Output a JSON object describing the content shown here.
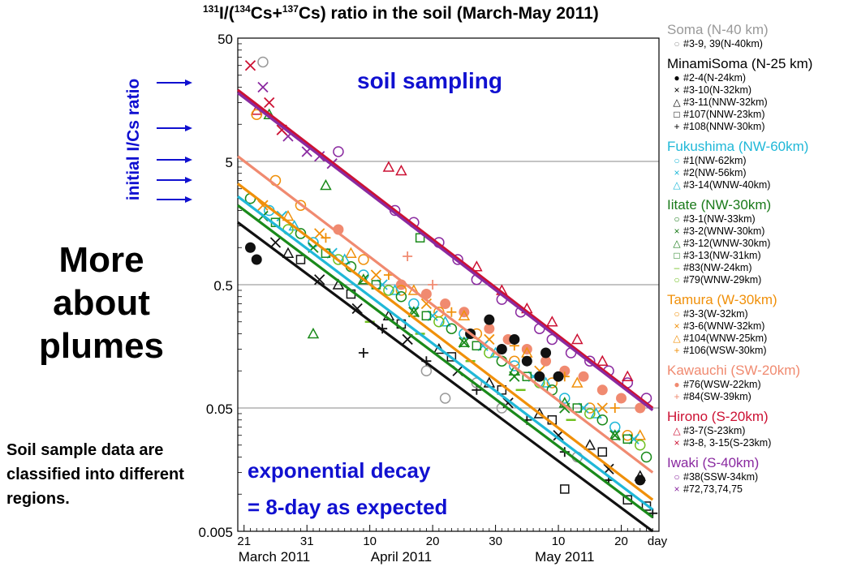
{
  "slide": {
    "title": "More about plumes",
    "note": "Soil sample data are classified into different regions.",
    "annotation_initial": "initial I/Cs ratio",
    "annotation_sampling": "soil sampling",
    "annotation_decay_1": "exponential decay",
    "annotation_decay_2": "= 8-day as expected"
  },
  "chart_data": {
    "type": "scatter",
    "title_parts": [
      "131",
      "I/(",
      "134",
      "Cs+",
      "137",
      "Cs) ratio in the soil (March-May 2011)"
    ],
    "xaxis": {
      "ticks": [
        {
          "day": 21,
          "label": "21"
        },
        {
          "day": 31,
          "label": "31"
        },
        {
          "day": 41,
          "label": "10"
        },
        {
          "day": 51,
          "label": "20"
        },
        {
          "day": 61,
          "label": "30"
        },
        {
          "day": 71,
          "label": "10"
        },
        {
          "day": 81,
          "label": "20"
        }
      ],
      "unit_label": "day",
      "month_labels": [
        "March 2011",
        "April 2011",
        "May 2011"
      ],
      "range": [
        20,
        87
      ]
    },
    "yaxis": {
      "scale": "log",
      "range": [
        0.005,
        50
      ],
      "tick_labels": [
        "50",
        "5",
        "0.5",
        "0.05",
        "0.005"
      ],
      "ticks": [
        50,
        5,
        0.5,
        0.05,
        0.005
      ]
    },
    "grid": true,
    "fit_lines": [
      {
        "region": "Hirono / Iwaki",
        "color": "#cc1133",
        "x": [
          20,
          86
        ],
        "y": [
          19,
          0.05
        ]
      },
      {
        "region": "Iwaki",
        "color": "#8a2aa0",
        "x": [
          20,
          86
        ],
        "y": [
          18,
          0.048
        ]
      },
      {
        "region": "Kawauchi",
        "color": "#f08a70",
        "x": [
          20,
          86
        ],
        "y": [
          5.5,
          0.015
        ]
      },
      {
        "region": "Tamura",
        "color": "#f0900a",
        "x": [
          20,
          86
        ],
        "y": [
          3.3,
          0.009
        ]
      },
      {
        "region": "Fukushima",
        "color": "#20b8d8",
        "x": [
          20,
          86
        ],
        "y": [
          2.6,
          0.0075
        ]
      },
      {
        "region": "Iitate",
        "color": "#1a8a1a",
        "x": [
          20,
          86
        ],
        "y": [
          2.2,
          0.0065
        ]
      },
      {
        "region": "MinamiSoma",
        "color": "#111111",
        "x": [
          20,
          86
        ],
        "y": [
          1.6,
          0.005
        ]
      }
    ],
    "series": [
      {
        "region": "Iwaki",
        "color": "#8a2aa0",
        "marker": "circle",
        "x": [
          36,
          45,
          48,
          52,
          55,
          58,
          62,
          65,
          68,
          70,
          73,
          76,
          79,
          82,
          85
        ],
        "y": [
          6,
          2,
          1.6,
          1.1,
          0.8,
          0.55,
          0.38,
          0.3,
          0.22,
          0.18,
          0.14,
          0.12,
          0.1,
          0.08,
          0.06
        ]
      },
      {
        "region": "Iwaki",
        "color": "#8a2aa0",
        "marker": "x",
        "x": [
          24,
          28,
          31,
          33,
          35
        ],
        "y": [
          20,
          8,
          6,
          5.5,
          4.8
        ]
      },
      {
        "region": "Hirono",
        "color": "#cc1133",
        "marker": "triangle",
        "x": [
          23,
          44,
          46,
          58,
          62,
          66,
          70,
          74,
          78,
          82
        ],
        "y": [
          13,
          4.5,
          4.2,
          0.7,
          0.45,
          0.32,
          0.25,
          0.18,
          0.12,
          0.09
        ]
      },
      {
        "region": "Hirono",
        "color": "#cc1133",
        "marker": "x",
        "x": [
          22,
          25,
          27
        ],
        "y": [
          30,
          15,
          9
        ]
      },
      {
        "region": "Kawauchi",
        "color": "#f08a70",
        "marker": "dot",
        "x": [
          36,
          46,
          50,
          53,
          56,
          60,
          63,
          66,
          69,
          72,
          75,
          78,
          81,
          84
        ],
        "y": [
          1.4,
          0.5,
          0.42,
          0.35,
          0.3,
          0.22,
          0.18,
          0.15,
          0.12,
          0.1,
          0.09,
          0.07,
          0.06,
          0.05
        ]
      },
      {
        "region": "Kawauchi",
        "color": "#f08a70",
        "marker": "plus",
        "x": [
          47,
          51
        ],
        "y": [
          0.85,
          0.5
        ]
      },
      {
        "region": "Tamura",
        "color": "#f0900a",
        "marker": "circle",
        "x": [
          23,
          26,
          30,
          40,
          46,
          52,
          58,
          64,
          70,
          76,
          82
        ],
        "y": [
          12,
          3.5,
          2.2,
          0.8,
          0.45,
          0.3,
          0.2,
          0.12,
          0.08,
          0.05,
          0.03
        ]
      },
      {
        "region": "Tamura",
        "color": "#f0900a",
        "marker": "x",
        "x": [
          24,
          33,
          42,
          50,
          60,
          68,
          78
        ],
        "y": [
          2.2,
          1.3,
          0.6,
          0.35,
          0.18,
          0.1,
          0.05
        ]
      },
      {
        "region": "Tamura",
        "color": "#f0900a",
        "marker": "triangle",
        "x": [
          28,
          38,
          48,
          56,
          66,
          74,
          84
        ],
        "y": [
          1.8,
          0.9,
          0.45,
          0.28,
          0.14,
          0.08,
          0.03
        ]
      },
      {
        "region": "Tamura",
        "color": "#f0900a",
        "marker": "plus",
        "x": [
          34,
          44,
          54,
          64,
          72,
          80
        ],
        "y": [
          1.2,
          0.6,
          0.3,
          0.16,
          0.09,
          0.05
        ]
      },
      {
        "region": "Fukushima",
        "color": "#20b8d8",
        "marker": "circle",
        "x": [
          25,
          32,
          40,
          48,
          56,
          64,
          72,
          80
        ],
        "y": [
          2.0,
          1.1,
          0.6,
          0.35,
          0.2,
          0.11,
          0.06,
          0.035
        ]
      },
      {
        "region": "Fukushima",
        "color": "#20b8d8",
        "marker": "x",
        "x": [
          27,
          35,
          43,
          51,
          59,
          67,
          75,
          83
        ],
        "y": [
          1.8,
          0.9,
          0.5,
          0.28,
          0.16,
          0.09,
          0.05,
          0.028
        ]
      },
      {
        "region": "Fukushima",
        "color": "#20b8d8",
        "marker": "triangle",
        "x": [
          29,
          37,
          45,
          53,
          61,
          69,
          77
        ],
        "y": [
          1.5,
          0.8,
          0.45,
          0.25,
          0.14,
          0.08,
          0.045
        ]
      },
      {
        "region": "Iitate",
        "color": "#1a8a1a",
        "marker": "circle",
        "x": [
          22,
          30,
          38,
          46,
          54,
          62,
          70,
          78,
          85
        ],
        "y": [
          2.5,
          1.3,
          0.7,
          0.4,
          0.22,
          0.12,
          0.07,
          0.04,
          0.02
        ]
      },
      {
        "region": "Iitate",
        "color": "#1a8a1a",
        "marker": "x",
        "x": [
          24,
          32,
          40,
          48,
          56,
          64,
          72,
          80
        ],
        "y": [
          1.8,
          1.0,
          0.55,
          0.3,
          0.17,
          0.09,
          0.05,
          0.03
        ]
      },
      {
        "region": "Iitate",
        "color": "#1a8a1a",
        "marker": "triangle",
        "x": [
          25,
          32,
          34,
          40,
          48,
          56,
          64,
          72,
          80
        ],
        "y": [
          12,
          0.2,
          3.2,
          0.55,
          0.3,
          0.17,
          0.1,
          0.055,
          0.03
        ]
      },
      {
        "region": "Iitate",
        "color": "#1a8a1a",
        "marker": "square",
        "x": [
          26,
          34,
          42,
          49,
          50,
          58,
          66,
          74,
          82
        ],
        "y": [
          1.6,
          0.9,
          0.5,
          1.2,
          0.28,
          0.16,
          0.09,
          0.05,
          0.028
        ]
      },
      {
        "region": "Iitate",
        "color": "#70c020",
        "marker": "dash",
        "x": [
          41,
          49,
          57,
          65,
          73
        ],
        "y": [
          0.25,
          0.2,
          0.12,
          0.07,
          0.04
        ]
      },
      {
        "region": "Iitate",
        "color": "#70c020",
        "marker": "circle",
        "x": [
          28,
          36,
          44,
          52,
          60,
          68,
          76,
          84
        ],
        "y": [
          1.4,
          0.8,
          0.45,
          0.25,
          0.14,
          0.08,
          0.045,
          0.025
        ]
      },
      {
        "region": "MinamiSoma",
        "color": "#111111",
        "marker": "dot",
        "x": [
          22,
          23,
          57,
          60,
          62,
          64,
          66,
          68,
          69,
          71,
          84
        ],
        "y": [
          1.0,
          0.8,
          0.2,
          0.26,
          0.15,
          0.18,
          0.12,
          0.09,
          0.14,
          0.09,
          0.013
        ]
      },
      {
        "region": "MinamiSoma",
        "color": "#111111",
        "marker": "x",
        "x": [
          26,
          33,
          39,
          47,
          55,
          63,
          71,
          79
        ],
        "y": [
          1.1,
          0.55,
          0.32,
          0.18,
          0.1,
          0.055,
          0.03,
          0.016
        ]
      },
      {
        "region": "MinamiSoma",
        "color": "#111111",
        "marker": "triangle",
        "x": [
          28,
          36,
          44,
          52,
          60,
          68,
          76,
          84
        ],
        "y": [
          0.9,
          0.5,
          0.28,
          0.15,
          0.08,
          0.045,
          0.025,
          0.014
        ]
      },
      {
        "region": "MinamiSoma",
        "color": "#111111",
        "marker": "square",
        "x": [
          30,
          38,
          46,
          54,
          62,
          70,
          72,
          78,
          82,
          85
        ],
        "y": [
          0.8,
          0.42,
          0.24,
          0.13,
          0.07,
          0.04,
          0.011,
          0.022,
          0.009,
          0.008
        ]
      },
      {
        "region": "MinamiSoma",
        "color": "#111111",
        "marker": "plus",
        "x": [
          40,
          43,
          50,
          58,
          66,
          72,
          79,
          86
        ],
        "y": [
          0.14,
          0.22,
          0.12,
          0.07,
          0.04,
          0.022,
          0.013,
          0.007
        ]
      },
      {
        "region": "Soma",
        "color": "#999999",
        "marker": "circle",
        "x": [
          24,
          50,
          53,
          58,
          62,
          74
        ],
        "y": [
          32,
          0.1,
          0.06,
          0.08,
          0.05,
          0.02
        ]
      }
    ],
    "legend": [
      {
        "name": "Soma (N-40 km)",
        "color": "#999999",
        "items": [
          {
            "sym": "○",
            "label": "#3-9, 39(N-40km)"
          }
        ]
      },
      {
        "name": "MinamiSoma (N-25 km)",
        "color": "#000000",
        "items": [
          {
            "sym": "●",
            "label": "#2-4(N-24km)"
          },
          {
            "sym": "×",
            "label": "#3-10(N-32km)"
          },
          {
            "sym": "△",
            "label": "#3-11(NNW-32km)"
          },
          {
            "sym": "□",
            "label": "#107(NNW-23km)"
          },
          {
            "sym": "+",
            "label": "#108(NNW-30km)"
          }
        ]
      },
      {
        "name": "Fukushima (NW-60km)",
        "color": "#20b8d8",
        "items": [
          {
            "sym": "○",
            "label": "#1(NW-62km)"
          },
          {
            "sym": "×",
            "label": "#2(NW-56km)"
          },
          {
            "sym": "△",
            "label": "#3-14(WNW-40km)"
          }
        ]
      },
      {
        "name": "Iitate (NW-30km)",
        "color": "#1a7a1a",
        "items": [
          {
            "sym": "○",
            "label": "#3-1(NW-33km)"
          },
          {
            "sym": "×",
            "label": "#3-2(WNW-30km)"
          },
          {
            "sym": "△",
            "label": "#3-12(WNW-30km)"
          },
          {
            "sym": "□",
            "label": "#3-13(NW-31km)"
          },
          {
            "sym": "–",
            "label": "#83(NW-24km)",
            "symColor": "#70c020"
          },
          {
            "sym": "○",
            "label": "#79(WNW-29km)",
            "symColor": "#70c020"
          }
        ]
      },
      {
        "name": "Tamura (W-30km)",
        "color": "#f0900a",
        "items": [
          {
            "sym": "○",
            "label": "#3-3(W-32km)"
          },
          {
            "sym": "×",
            "label": "#3-6(WNW-32km)"
          },
          {
            "sym": "△",
            "label": "#104(WNW-25km)"
          },
          {
            "sym": "+",
            "label": "#106(WSW-30km)"
          }
        ]
      },
      {
        "name": "Kawauchi (SW-20km)",
        "color": "#f08a70",
        "items": [
          {
            "sym": "●",
            "label": "#76(WSW-22km)"
          },
          {
            "sym": "+",
            "label": "#84(SW-39km)"
          }
        ]
      },
      {
        "name": "Hirono (S-20km)",
        "color": "#cc1133",
        "items": [
          {
            "sym": "△",
            "label": "#3-7(S-23km)"
          },
          {
            "sym": "×",
            "label": "#3-8, 3-15(S-23km)"
          }
        ]
      },
      {
        "name": "Iwaki (S-40km)",
        "color": "#8a2aa0",
        "items": [
          {
            "sym": "○",
            "label": "#38(SSW-34km)"
          },
          {
            "sym": "×",
            "label": "#72,73,74,75"
          }
        ]
      }
    ]
  }
}
